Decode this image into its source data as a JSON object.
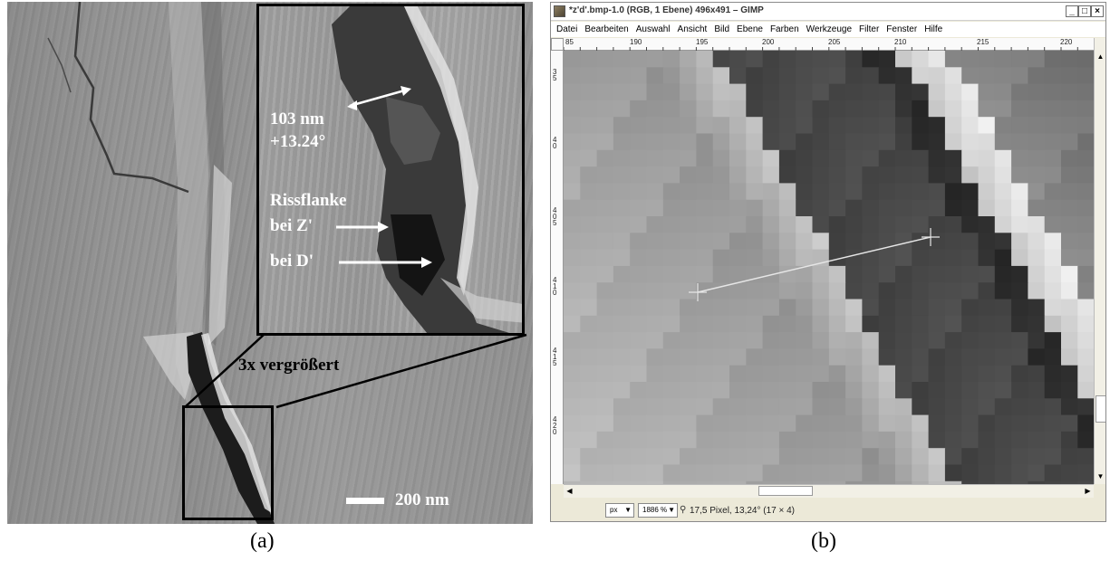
{
  "panel_a": {
    "caption": "(a)",
    "scale_bar_label": "200 nm",
    "zoom_label": "3x vergrößert",
    "measure_value": "103 nm",
    "measure_angle": "+13.24°",
    "crack_flank_label_line1": "Rissflanke",
    "crack_flank_label_line2": "bei Z'",
    "d_label": "bei D'"
  },
  "panel_b": {
    "caption": "(b)",
    "window_title": "*z'd'.bmp-1.0 (RGB, 1 Ebene) 496x491 – GIMP",
    "window_buttons": [
      "_",
      "□",
      "×"
    ],
    "menu": [
      "Datei",
      "Bearbeiten",
      "Auswahl",
      "Ansicht",
      "Bild",
      "Ebene",
      "Farben",
      "Werkzeuge",
      "Filter",
      "Fenster",
      "Hilfe"
    ],
    "ruler_h_labels": [
      "85",
      "190",
      "195",
      "200",
      "205",
      "210",
      "215",
      "220"
    ],
    "ruler_v_labels": [
      "35",
      "40",
      "405",
      "410",
      "415",
      "420"
    ],
    "status_unit": "px",
    "status_zoom": "1886 %",
    "status_measure": "17,5 Pixel, 13,24° (17 × 4)"
  }
}
